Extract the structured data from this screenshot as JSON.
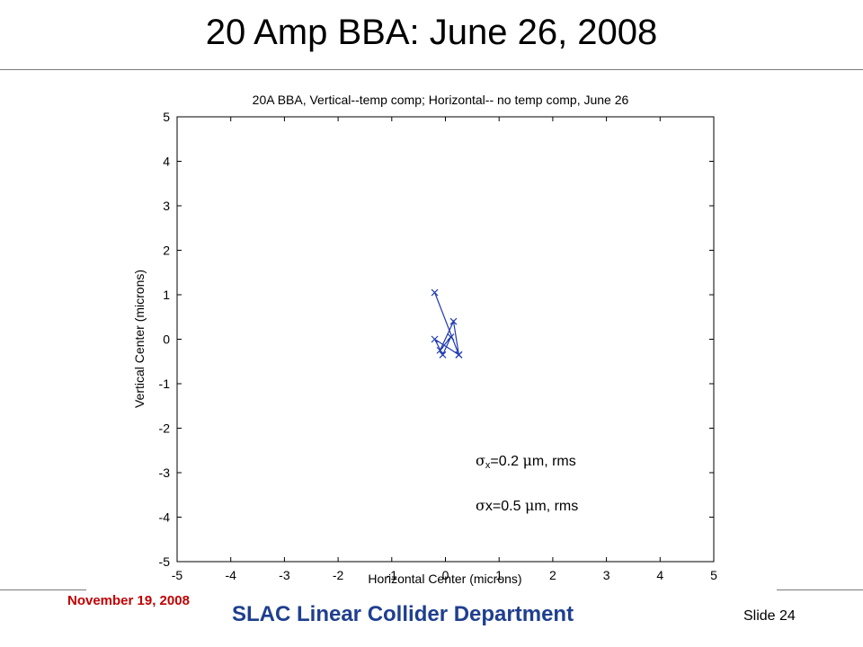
{
  "slide": {
    "title": "20 Amp BBA: June 26, 2008",
    "footer_date": "November 19, 2008",
    "footer_dept": "SLAC Linear Collider Department",
    "slide_label": "Slide 24"
  },
  "annotations": {
    "line1_symbol": "σ",
    "line1_sub": "x",
    "line1_value": "=0.2",
    "line1_mu": "μ",
    "line1_unit": "m, rms",
    "line2_symbol": "σ",
    "line2_value": "x=0.5",
    "line2_mu": "μ",
    "line2_unit": "m, rms"
  },
  "chart_data": {
    "type": "line",
    "title": "20A BBA, Vertical--temp comp; Horizontal-- no temp comp, June 26",
    "xlabel": "Horizontal Center (microns)",
    "ylabel": "Vertical Center (microns)",
    "xlim": [
      -5,
      5
    ],
    "ylim": [
      -5,
      5
    ],
    "xticks": [
      -5,
      -4,
      -3,
      -2,
      -1,
      0,
      1,
      2,
      3,
      4,
      5
    ],
    "yticks": [
      -5,
      -4,
      -3,
      -2,
      -1,
      0,
      1,
      2,
      3,
      4,
      5
    ],
    "grid": false,
    "series": [
      {
        "color": "#1f3ab0",
        "marker": "x",
        "x": [
          -0.2,
          0.25,
          -0.2,
          -0.05,
          0.1,
          -0.1,
          0.15,
          0.25
        ],
        "y": [
          1.05,
          -0.35,
          0.0,
          -0.35,
          0.05,
          -0.25,
          0.4,
          -0.35
        ]
      }
    ]
  }
}
